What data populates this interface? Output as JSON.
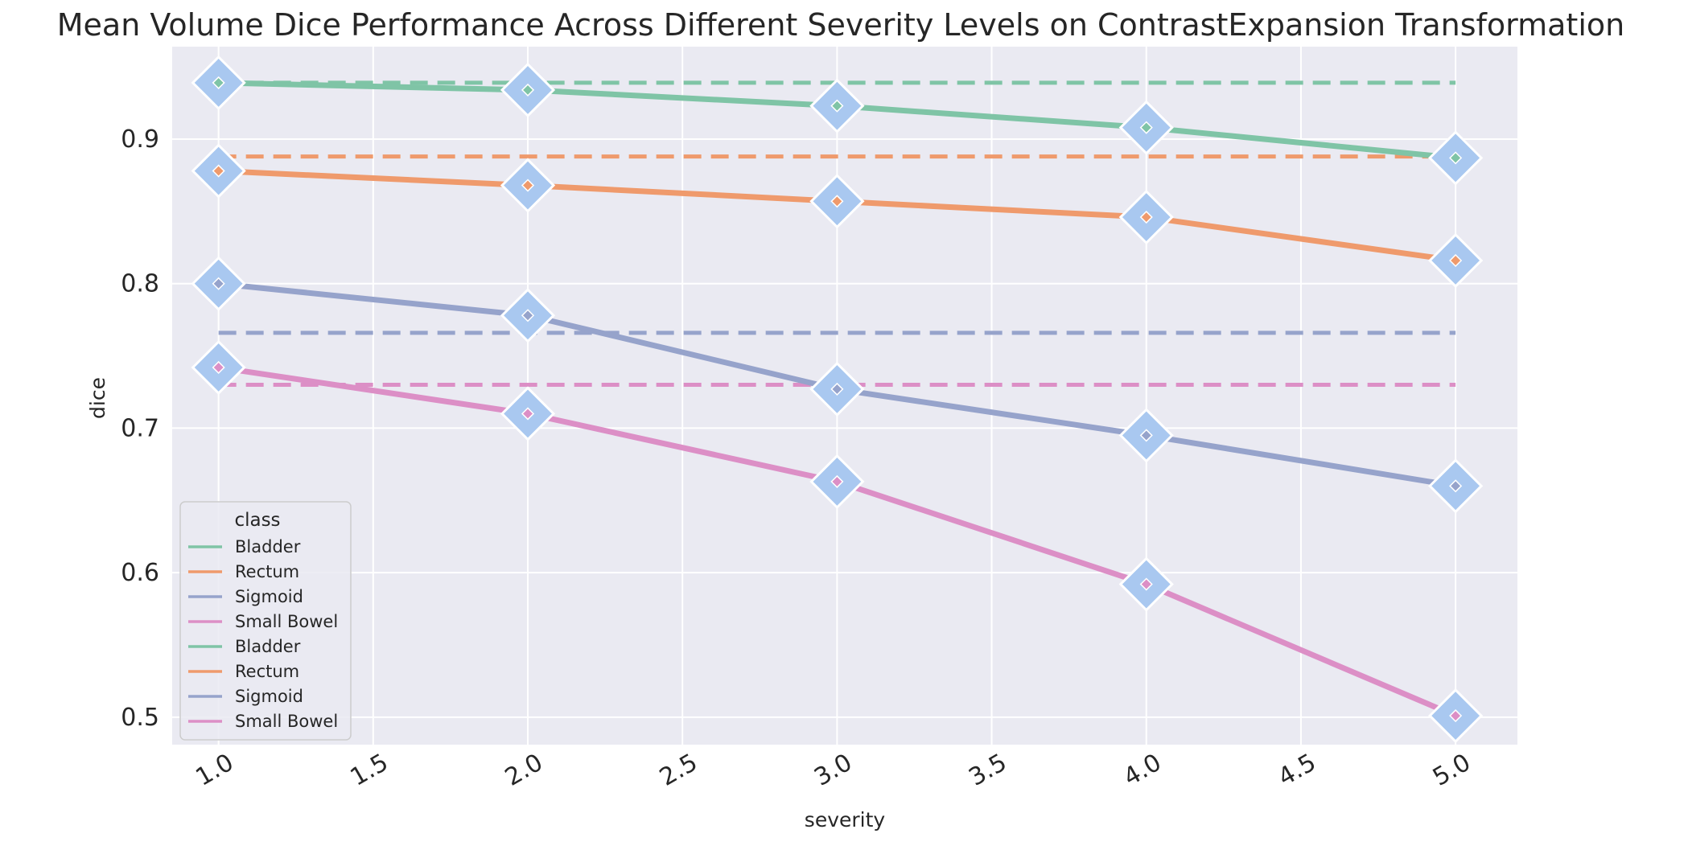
{
  "chart_data": {
    "type": "line",
    "title": "Mean Volume Dice Performance Across Different Severity Levels on ContrastExpansion Transformation",
    "xlabel": "severity",
    "ylabel": "dice",
    "x": [
      1.0,
      2.0,
      3.0,
      4.0,
      5.0
    ],
    "xlim": [
      0.85,
      5.2
    ],
    "ylim": [
      0.481,
      0.964
    ],
    "x_ticks": [
      1.0,
      1.5,
      2.0,
      2.5,
      3.0,
      3.5,
      4.0,
      4.5,
      5.0
    ],
    "x_tick_labels": [
      "1.0",
      "1.5",
      "2.0",
      "2.5",
      "3.0",
      "3.5",
      "4.0",
      "4.5",
      "5.0"
    ],
    "y_ticks": [
      0.5,
      0.6,
      0.7,
      0.8,
      0.9
    ],
    "y_tick_labels": [
      "0.5",
      "0.6",
      "0.7",
      "0.8",
      "0.9"
    ],
    "grid": true,
    "background": "#eaeaf2",
    "marker_color": "#a9c8f0",
    "series": [
      {
        "name": "Bladder",
        "color": "#7fc4a6",
        "values": [
          0.939,
          0.934,
          0.923,
          0.908,
          0.887
        ]
      },
      {
        "name": "Rectum",
        "color": "#ef9a6c",
        "values": [
          0.878,
          0.868,
          0.857,
          0.846,
          0.816
        ]
      },
      {
        "name": "Sigmoid",
        "color": "#96a3cb",
        "values": [
          0.8,
          0.778,
          0.727,
          0.695,
          0.66
        ]
      },
      {
        "name": "Small Bowel",
        "color": "#dc8fc6",
        "values": [
          0.742,
          0.71,
          0.663,
          0.592,
          0.501
        ]
      }
    ],
    "baselines": [
      {
        "name": "Bladder",
        "color": "#7fc4a6",
        "value": 0.939
      },
      {
        "name": "Rectum",
        "color": "#ef9a6c",
        "value": 0.888
      },
      {
        "name": "Sigmoid",
        "color": "#96a3cb",
        "value": 0.766
      },
      {
        "name": "Small Bowel",
        "color": "#dc8fc6",
        "value": 0.73
      }
    ],
    "legend": {
      "title": "class",
      "placement": "lower-left",
      "entries": [
        {
          "label": "Bladder",
          "color": "#7fc4a6"
        },
        {
          "label": "Rectum",
          "color": "#ef9a6c"
        },
        {
          "label": "Sigmoid",
          "color": "#96a3cb"
        },
        {
          "label": "Small Bowel",
          "color": "#dc8fc6"
        },
        {
          "label": "Bladder",
          "color": "#7fc4a6"
        },
        {
          "label": "Rectum",
          "color": "#ef9a6c"
        },
        {
          "label": "Sigmoid",
          "color": "#96a3cb"
        },
        {
          "label": "Small Bowel",
          "color": "#dc8fc6"
        }
      ]
    }
  }
}
